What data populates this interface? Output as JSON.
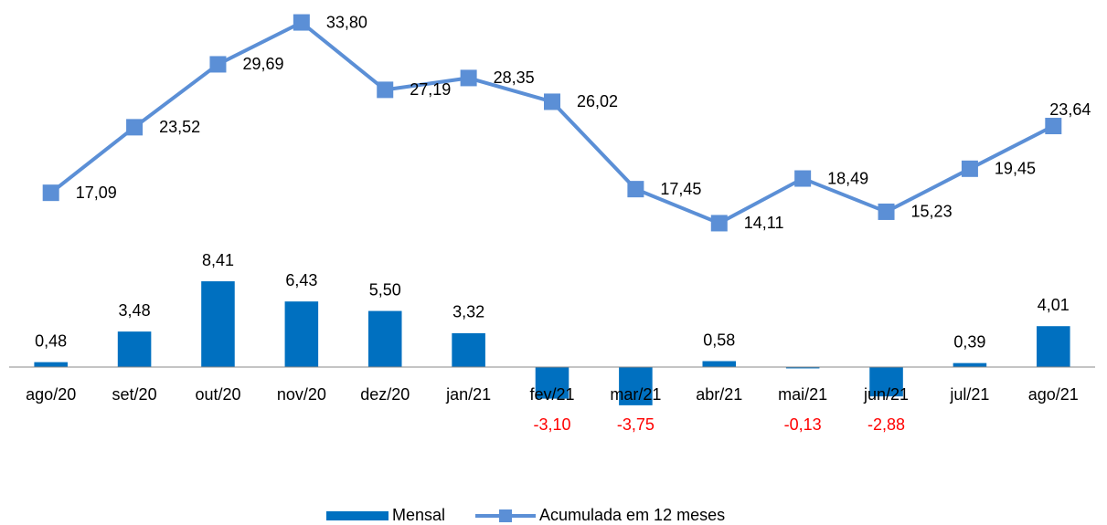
{
  "chart_data": {
    "type": "bar_line",
    "categories": [
      "ago/20",
      "set/20",
      "out/20",
      "nov/20",
      "dez/20",
      "jan/21",
      "fev/21",
      "mar/21",
      "abr/21",
      "mai/21",
      "jun/21",
      "jul/21",
      "ago/21"
    ],
    "series": [
      {
        "name": "Mensal",
        "type": "bar",
        "color": "#0070c0",
        "values": [
          0.48,
          3.48,
          8.41,
          6.43,
          5.5,
          3.32,
          -3.1,
          -3.75,
          0.58,
          -0.13,
          -2.88,
          0.39,
          4.01
        ],
        "value_labels": [
          "0,48",
          "3,48",
          "8,41",
          "6,43",
          "5,50",
          "3,32",
          "-3,10",
          "-3,75",
          "0,58",
          "-0,13",
          "-2,88",
          "0,39",
          "4,01"
        ]
      },
      {
        "name": "Acumulada em 12 meses",
        "type": "line",
        "color": "#5b8fd6",
        "values": [
          17.09,
          23.52,
          29.69,
          33.8,
          27.19,
          28.35,
          26.02,
          17.45,
          14.11,
          18.49,
          15.23,
          19.45,
          23.64
        ],
        "value_labels": [
          "17,09",
          "23,52",
          "29,69",
          "33,80",
          "27,19",
          "28,35",
          "26,02",
          "17,45",
          "14,11",
          "18,49",
          "15,23",
          "19,45",
          "23,64"
        ]
      }
    ],
    "negative_label_color": "#ff0000",
    "ylim": [
      -6,
      36
    ],
    "legend": "bottom"
  }
}
